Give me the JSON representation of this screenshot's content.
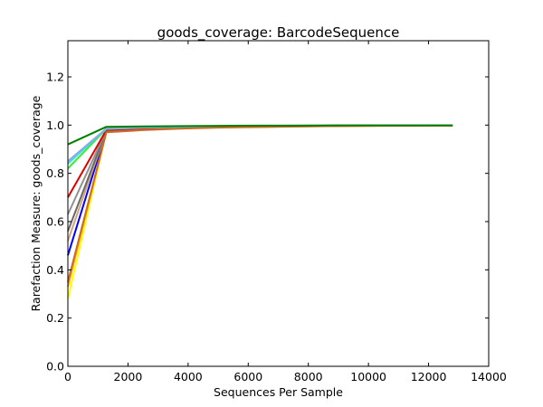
{
  "chart_data": {
    "type": "line",
    "title": "goods_coverage: BarcodeSequence",
    "xlabel": "Sequences Per Sample",
    "ylabel": "Rarefaction Measure: goods_coverage",
    "xlim": [
      0,
      14000
    ],
    "ylim": [
      0.0,
      1.35
    ],
    "xticks": [
      0,
      2000,
      4000,
      6000,
      8000,
      10000,
      12000,
      14000
    ],
    "yticks": [
      0.0,
      0.2,
      0.4,
      0.6,
      0.8,
      1.0,
      1.2
    ],
    "xtick_labels": [
      "0",
      "2000",
      "4000",
      "6000",
      "8000",
      "10000",
      "12000",
      "14000"
    ],
    "ytick_labels": [
      "0.0",
      "0.2",
      "0.4",
      "0.6",
      "0.8",
      "1.0",
      "1.2"
    ],
    "x": [
      0,
      1280,
      2560,
      3840,
      5120,
      6400,
      7680,
      8960,
      10240,
      11520,
      12800
    ],
    "series": [
      {
        "name": "yellow",
        "color": "#ffff00",
        "values": [
          0.28,
          0.974,
          0.983,
          0.988,
          0.992,
          0.994,
          0.996,
          0.997,
          0.998,
          0.998,
          0.999
        ]
      },
      {
        "name": "orange",
        "color": "#ffa500",
        "values": [
          0.33,
          0.972,
          0.982,
          0.987,
          0.991,
          0.993,
          0.995,
          0.996,
          0.997,
          0.998,
          0.998
        ]
      },
      {
        "name": "blue",
        "color": "#0000ff",
        "values": [
          0.46,
          0.975,
          0.984,
          0.989,
          0.992,
          0.994,
          0.996,
          0.997,
          0.998,
          0.998,
          0.999
        ]
      },
      {
        "name": "tan",
        "color": "#d2a679",
        "values": [
          0.52,
          0.976,
          0.984,
          0.989,
          0.992,
          0.994,
          0.996,
          0.997,
          0.998,
          0.998,
          0.999
        ]
      },
      {
        "name": "dimgray",
        "color": "#696969",
        "values": [
          0.56,
          0.977,
          0.985,
          0.99,
          0.993,
          0.995,
          0.996,
          0.997,
          0.998,
          0.999,
          0.999
        ]
      },
      {
        "name": "gray",
        "color": "#909090",
        "values": [
          0.63,
          0.978,
          0.986,
          0.99,
          0.993,
          0.995,
          0.996,
          0.997,
          0.998,
          0.999,
          0.999
        ]
      },
      {
        "name": "red",
        "color": "#e00000",
        "values": [
          0.7,
          0.98,
          0.987,
          0.991,
          0.994,
          0.995,
          0.997,
          0.998,
          0.998,
          0.999,
          0.999
        ]
      },
      {
        "name": "lime",
        "color": "#33ee33",
        "values": [
          0.82,
          0.984,
          0.99,
          0.993,
          0.995,
          0.996,
          0.997,
          0.998,
          0.999,
          0.999,
          0.999
        ]
      },
      {
        "name": "turquoise",
        "color": "#40e0d0",
        "values": [
          0.84,
          0.985,
          0.99,
          0.993,
          0.995,
          0.997,
          0.998,
          0.998,
          0.999,
          0.999,
          0.999
        ]
      },
      {
        "name": "lightblue",
        "color": "#8aa8ee",
        "values": [
          0.85,
          0.986,
          0.991,
          0.994,
          0.996,
          0.997,
          0.998,
          0.998,
          0.999,
          0.999,
          0.999
        ]
      },
      {
        "name": "sienna",
        "color": "#cd6a28",
        "values": [
          0.35,
          0.97,
          0.98,
          0.986,
          0.99,
          0.992,
          0.994,
          0.996,
          0.997,
          0.997,
          0.998
        ]
      },
      {
        "name": "green",
        "color": "#008000",
        "values": [
          0.92,
          0.993,
          0.995,
          0.996,
          0.997,
          0.998,
          0.998,
          0.999,
          0.999,
          0.999,
          0.999
        ]
      }
    ]
  }
}
